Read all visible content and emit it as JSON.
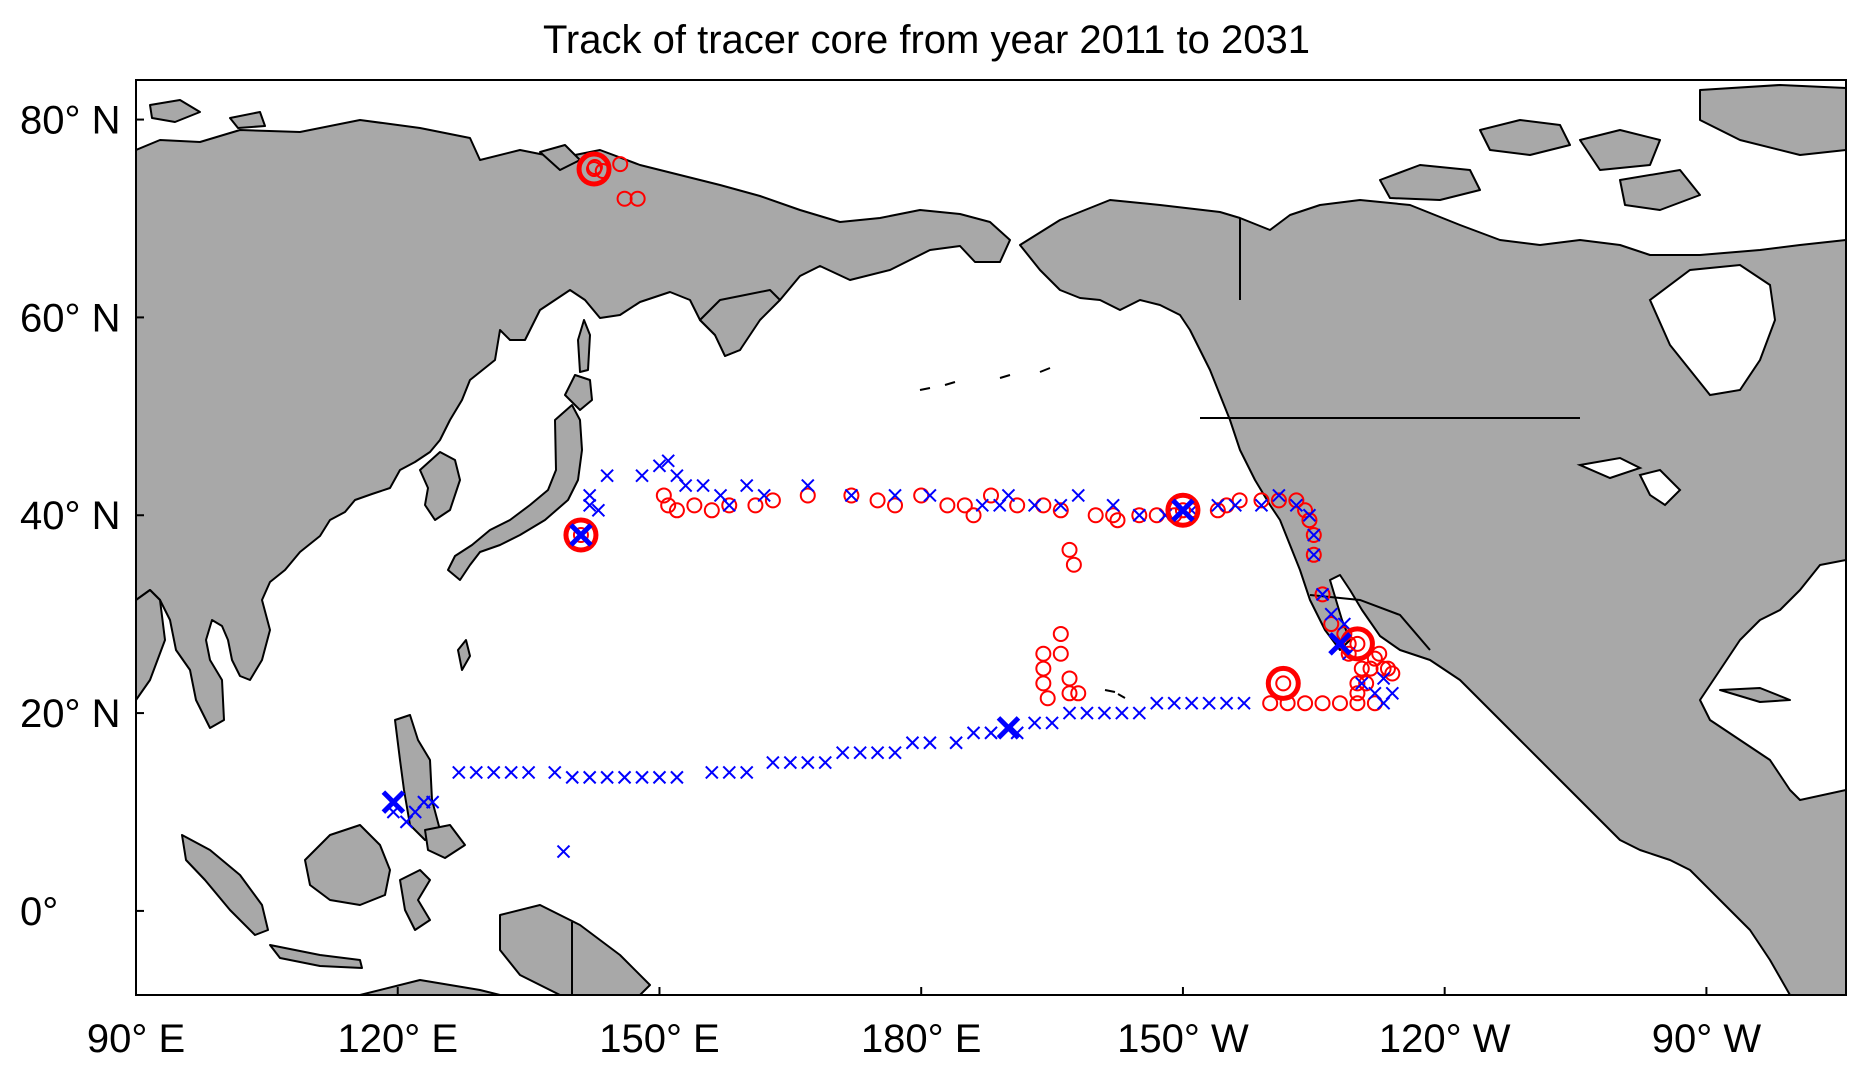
{
  "title": "Track of tracer core from  year 2011 to 2031",
  "colors": {
    "land": "#a8a8a8",
    "ocean": "#ffffff",
    "circle_series": "#ff0000",
    "cross_series": "#0000ff"
  },
  "x_ticks": [
    {
      "lon": 90,
      "label": "90° E"
    },
    {
      "lon": 120,
      "label": "120° E"
    },
    {
      "lon": 150,
      "label": "150° E"
    },
    {
      "lon": 180,
      "label": "180° E"
    },
    {
      "lon": 210,
      "label": "150° W"
    },
    {
      "lon": 240,
      "label": "120° W"
    },
    {
      "lon": 270,
      "label": "90° W"
    }
  ],
  "y_ticks": [
    {
      "lat": 80,
      "label": "80° N"
    },
    {
      "lat": 60,
      "label": "60° N"
    },
    {
      "lat": 40,
      "label": "40° N"
    },
    {
      "lat": 20,
      "label": "20° N"
    },
    {
      "lat": 0,
      "label": "0°"
    }
  ],
  "chart_data": {
    "type": "scatter",
    "projection": "equirectangular",
    "title": "Track of tracer core from  year 2011 to 2031",
    "xlim": [
      90,
      286
    ],
    "ylim": [
      -8.5,
      84
    ],
    "x_unit": "degrees longitude east (0-360)",
    "y_unit": "degrees latitude",
    "grid": false,
    "legend": "none",
    "series": [
      {
        "marker": "circle",
        "color": "#ff0000",
        "points": [
          [
            142.6,
            75.2
          ],
          [
            143.5,
            74.8
          ],
          [
            145.5,
            75.5
          ],
          [
            146,
            72
          ],
          [
            147.5,
            72
          ],
          [
            150.5,
            42
          ],
          [
            151,
            41
          ],
          [
            152,
            40.5
          ],
          [
            154,
            41
          ],
          [
            156,
            40.5
          ],
          [
            158,
            41
          ],
          [
            161,
            41
          ],
          [
            163,
            41.5
          ],
          [
            167,
            42
          ],
          [
            172,
            42
          ],
          [
            175,
            41.5
          ],
          [
            177,
            41
          ],
          [
            180,
            42
          ],
          [
            183,
            41
          ],
          [
            185,
            41
          ],
          [
            186,
            40
          ],
          [
            188,
            42
          ],
          [
            191,
            41
          ],
          [
            194,
            41
          ],
          [
            196,
            40.5
          ],
          [
            197,
            36.5
          ],
          [
            197.5,
            35
          ],
          [
            200,
            40
          ],
          [
            202,
            40
          ],
          [
            202.5,
            39.5
          ],
          [
            205,
            40
          ],
          [
            207,
            40
          ],
          [
            209,
            40
          ],
          [
            211,
            40.5
          ],
          [
            214,
            40.5
          ],
          [
            215,
            41
          ],
          [
            216.5,
            41.5
          ],
          [
            219,
            41.5
          ],
          [
            221,
            41.5
          ],
          [
            223,
            41.5
          ],
          [
            224,
            40.5
          ],
          [
            224.5,
            39.5
          ],
          [
            225,
            38
          ],
          [
            225,
            36
          ],
          [
            226,
            32
          ],
          [
            227,
            29
          ],
          [
            228.5,
            28
          ],
          [
            229,
            27
          ],
          [
            230,
            23
          ],
          [
            231,
            23
          ],
          [
            232,
            25.5
          ],
          [
            232.5,
            26
          ],
          [
            233,
            24.5
          ],
          [
            232,
            21
          ],
          [
            230,
            21
          ],
          [
            228,
            21
          ],
          [
            226,
            21
          ],
          [
            224,
            21
          ],
          [
            222,
            21
          ],
          [
            220,
            21
          ],
          [
            230.5,
            24.5
          ],
          [
            231.5,
            24.5
          ],
          [
            233.5,
            24.5
          ],
          [
            234,
            24
          ],
          [
            230,
            22
          ],
          [
            229,
            26
          ],
          [
            194,
            26
          ],
          [
            194,
            24.5
          ],
          [
            194,
            23
          ],
          [
            194.5,
            21.5
          ],
          [
            196,
            28
          ],
          [
            196,
            26
          ],
          [
            197,
            23.5
          ],
          [
            197,
            22
          ],
          [
            198,
            22
          ]
        ]
      },
      {
        "marker": "x",
        "color": "#0000ff",
        "points": [
          [
            142,
            42
          ],
          [
            142,
            41
          ],
          [
            143,
            40.5
          ],
          [
            144,
            44
          ],
          [
            148,
            44
          ],
          [
            150,
            45
          ],
          [
            151,
            45.5
          ],
          [
            152,
            44
          ],
          [
            153,
            43
          ],
          [
            155,
            43
          ],
          [
            157,
            42
          ],
          [
            158,
            41
          ],
          [
            160,
            43
          ],
          [
            162,
            42
          ],
          [
            167,
            43
          ],
          [
            172,
            42
          ],
          [
            177,
            42
          ],
          [
            181,
            42
          ],
          [
            187,
            41
          ],
          [
            189,
            41
          ],
          [
            190,
            42
          ],
          [
            193,
            41
          ],
          [
            196,
            41
          ],
          [
            198,
            42
          ],
          [
            202,
            41
          ],
          [
            205,
            40
          ],
          [
            208,
            40
          ],
          [
            211,
            40.5
          ],
          [
            214,
            41
          ],
          [
            216,
            41
          ],
          [
            219,
            41
          ],
          [
            221,
            42
          ],
          [
            223,
            41
          ],
          [
            224.5,
            40
          ],
          [
            225,
            38
          ],
          [
            225,
            36
          ],
          [
            226,
            32
          ],
          [
            227,
            30
          ],
          [
            228.5,
            29
          ],
          [
            229,
            26
          ],
          [
            230.5,
            23
          ],
          [
            232,
            22
          ],
          [
            233,
            21
          ],
          [
            234,
            22
          ],
          [
            233,
            23.5
          ],
          [
            119.5,
            10
          ],
          [
            121,
            9
          ],
          [
            122,
            10
          ],
          [
            123,
            11
          ],
          [
            124,
            11
          ],
          [
            127,
            14
          ],
          [
            129,
            14
          ],
          [
            131,
            14
          ],
          [
            133,
            14
          ],
          [
            135,
            14
          ],
          [
            138,
            14
          ],
          [
            140,
            13.5
          ],
          [
            142,
            13.5
          ],
          [
            144,
            13.5
          ],
          [
            146,
            13.5
          ],
          [
            148,
            13.5
          ],
          [
            150,
            13.5
          ],
          [
            152,
            13.5
          ],
          [
            156,
            14
          ],
          [
            158,
            14
          ],
          [
            160,
            14
          ],
          [
            163,
            15
          ],
          [
            165,
            15
          ],
          [
            167,
            15
          ],
          [
            169,
            15
          ],
          [
            171,
            16
          ],
          [
            173,
            16
          ],
          [
            175,
            16
          ],
          [
            177,
            16
          ],
          [
            179,
            17
          ],
          [
            181,
            17
          ],
          [
            184,
            17
          ],
          [
            186,
            18
          ],
          [
            188,
            18
          ],
          [
            191,
            18
          ],
          [
            193,
            19
          ],
          [
            195,
            19
          ],
          [
            197,
            20
          ],
          [
            199,
            20
          ],
          [
            201,
            20
          ],
          [
            203,
            20
          ],
          [
            205,
            20
          ],
          [
            207,
            21
          ],
          [
            209,
            21
          ],
          [
            211,
            21
          ],
          [
            213,
            21
          ],
          [
            215,
            21
          ],
          [
            217,
            21
          ],
          [
            139,
            6
          ]
        ]
      }
    ],
    "highlight_circles": [
      [
        142.5,
        75
      ],
      [
        141,
        38
      ],
      [
        210,
        40.5
      ],
      [
        230,
        27
      ],
      [
        221.5,
        23
      ]
    ],
    "highlight_crosses": [
      [
        141,
        38
      ],
      [
        210,
        40.5
      ],
      [
        228,
        27
      ],
      [
        190,
        18.5
      ],
      [
        119.5,
        11
      ]
    ]
  }
}
